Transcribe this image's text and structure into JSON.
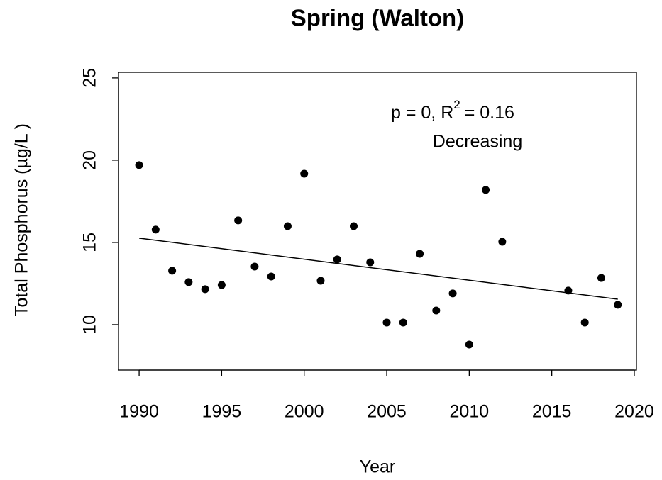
{
  "chart_data": {
    "type": "scatter",
    "title": "Spring (Walton)",
    "x_label": "Year",
    "y_label": "Total Phosphorus (µg/L )",
    "x": [
      1990,
      1991,
      1992,
      1993,
      1994,
      1995,
      1996,
      1997,
      1998,
      1999,
      2000,
      2001,
      2002,
      2003,
      2004,
      2005,
      2006,
      2007,
      2008,
      2009,
      2010,
      2011,
      2012,
      2016,
      2017,
      2018,
      2019
    ],
    "values": [
      19.7,
      15.78,
      13.28,
      12.59,
      12.16,
      12.41,
      16.34,
      13.53,
      12.93,
      15.99,
      19.18,
      12.67,
      13.97,
      15.99,
      13.79,
      10.13,
      10.13,
      14.31,
      10.86,
      11.9,
      8.79,
      18.19,
      15.04,
      12.07,
      10.13,
      12.84,
      11.21
    ],
    "color": "#000000",
    "trend": {
      "x": [
        1990,
        2019
      ],
      "values": [
        15.26,
        11.55
      ],
      "color": "#000000"
    },
    "annotation": {
      "stat": [
        "p = 0, R",
        "2",
        "= 0.16"
      ],
      "direction": "Decreasing"
    },
    "xlim": [
      1988.75,
      2020.13
    ],
    "ylim": [
      7.24,
      25.34
    ],
    "xticks": [
      1990,
      1995,
      2000,
      2005,
      2010,
      2015,
      2020
    ],
    "yticks": [
      10,
      15,
      20,
      25
    ]
  }
}
